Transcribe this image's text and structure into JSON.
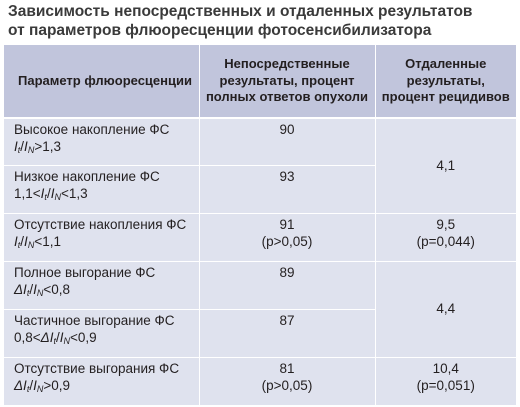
{
  "title_line1": "Зависимость непосредственных и отдаленных результатов",
  "title_line2": "от параметров флюоресценции фотосенсибилизатора",
  "headers": {
    "param": "Параметр флюоресценции",
    "immediate_l1": "Непосредственные",
    "immediate_l2": "результаты, процент",
    "immediate_l3": "полных ответов опухоли",
    "remote_l1": "Отдаленные",
    "remote_l2": "результаты,",
    "remote_l3": "процент рецидивов"
  },
  "rows": [
    {
      "label": "Высокое накопление ФС",
      "formula": {
        "pre": "",
        "i1": "I",
        "s1": "t",
        "mid": "/",
        "i2": "I",
        "s2": "N",
        "post": ">1,3"
      },
      "immediate": "90",
      "immediate_p": ""
    },
    {
      "label": "Низкое накопление ФС",
      "formula": {
        "pre": "1,1<",
        "i1": "I",
        "s1": "t",
        "mid": "/",
        "i2": "I",
        "s2": "N",
        "post": "<1,3"
      },
      "immediate": "93",
      "immediate_p": ""
    },
    {
      "label": "Отсутствие накопления ФС",
      "formula": {
        "pre": "",
        "i1": "I",
        "s1": "t",
        "mid": "/",
        "i2": "I",
        "s2": "N",
        "post": "<1,1"
      },
      "immediate": "91",
      "immediate_p": "(p>0,05)"
    },
    {
      "label": "Полное выгорание ФС",
      "formula": {
        "pre": "",
        "i1": "ΔI",
        "s1": "t",
        "mid": "/",
        "i2": "I",
        "s2": "N",
        "post": "<0,8"
      },
      "immediate": "89",
      "immediate_p": ""
    },
    {
      "label": "Частичное выгорание ФС",
      "formula": {
        "pre": "0,8<",
        "i1": "ΔI",
        "s1": "t",
        "mid": "/",
        "i2": "I",
        "s2": "N",
        "post": "<0,9"
      },
      "immediate": "87",
      "immediate_p": ""
    },
    {
      "label": "Отсутствие выгорания ФС",
      "formula": {
        "pre": "",
        "i1": "ΔI",
        "s1": "t",
        "mid": "/",
        "i2": "I",
        "s2": "N",
        "post": ">0,9"
      },
      "immediate": "81",
      "immediate_p": "(p>0,05)"
    }
  ],
  "remote": {
    "group1": "4,1",
    "group2_value": "9,5",
    "group2_p": "(p=0,044)",
    "group3": "4,4",
    "group4_value": "10,4",
    "group4_p": "(p=0,051)"
  }
}
